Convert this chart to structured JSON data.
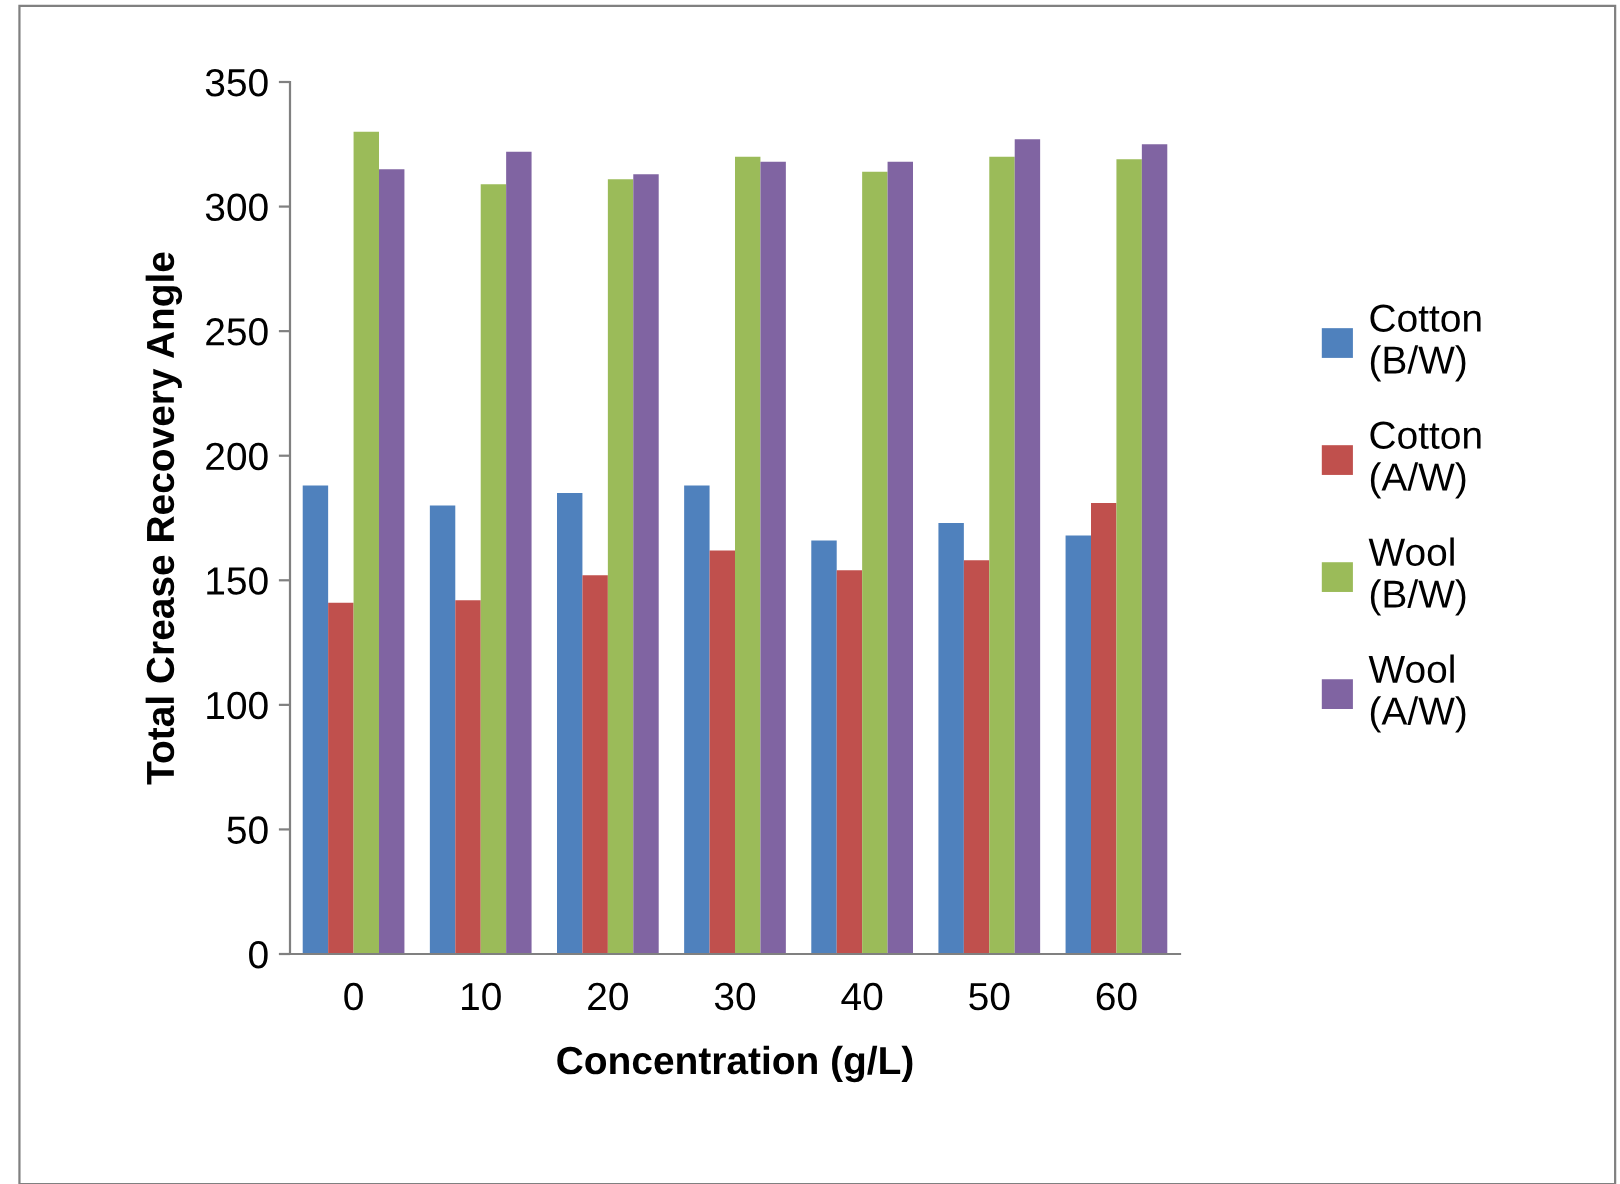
{
  "chart_data": {
    "type": "bar",
    "xlabel": "Concentration (g/L)",
    "ylabel": "Total Crease Recovery Angle",
    "categories": [
      "0",
      "10",
      "20",
      "30",
      "40",
      "50",
      "60"
    ],
    "series": [
      {
        "name": "Cotton\n(B/W)",
        "color": "#4f81bd",
        "values": [
          188,
          180,
          185,
          188,
          166,
          173,
          168
        ]
      },
      {
        "name": "Cotton\n(A/W)",
        "color": "#c0504d",
        "values": [
          141,
          142,
          152,
          162,
          154,
          158,
          181
        ]
      },
      {
        "name": "Wool\n(B/W)",
        "color": "#9bbb59",
        "values": [
          330,
          309,
          311,
          320,
          314,
          320,
          319
        ]
      },
      {
        "name": "Wool\n(A/W)",
        "color": "#8064a2",
        "values": [
          315,
          322,
          313,
          318,
          318,
          327,
          325
        ]
      }
    ],
    "ylim": [
      0,
      350
    ],
    "yticks": [
      0,
      50,
      100,
      150,
      200,
      250,
      300,
      350
    ],
    "grid": false,
    "legend": "right"
  }
}
